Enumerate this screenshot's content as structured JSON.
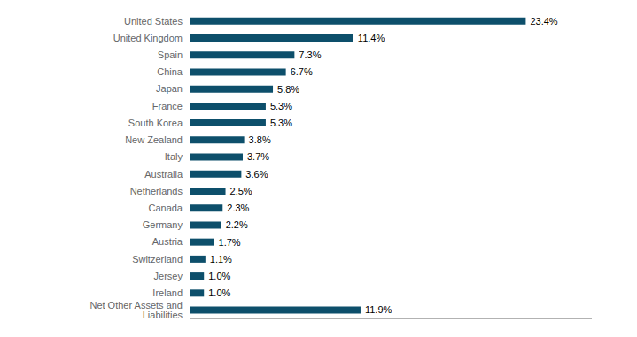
{
  "chart_data": {
    "type": "bar",
    "orientation": "horizontal",
    "categories": [
      "United States",
      "United Kingdom",
      "Spain",
      "China",
      "Japan",
      "France",
      "South Korea",
      "New Zealand",
      "Italy",
      "Australia",
      "Netherlands",
      "Canada",
      "Germany",
      "Austria",
      "Switzerland",
      "Jersey",
      "Ireland",
      "Net Other Assets and Liabilities"
    ],
    "values": [
      23.4,
      11.4,
      7.3,
      6.7,
      5.8,
      5.3,
      5.3,
      3.8,
      3.7,
      3.6,
      2.5,
      2.3,
      2.2,
      1.7,
      1.1,
      1.0,
      1.0,
      11.9
    ],
    "value_labels": [
      "23.4%",
      "11.4%",
      "7.3%",
      "6.7%",
      "5.8%",
      "5.3%",
      "5.3%",
      "3.8%",
      "3.7%",
      "3.6%",
      "2.5%",
      "2.3%",
      "2.2%",
      "1.7%",
      "1.1%",
      "1.0%",
      "1.0%",
      "11.9%"
    ],
    "color": "#0d4f6b",
    "xlim": [
      0,
      28
    ],
    "data_labels": true,
    "tick_labels": "y",
    "grid": false
  }
}
